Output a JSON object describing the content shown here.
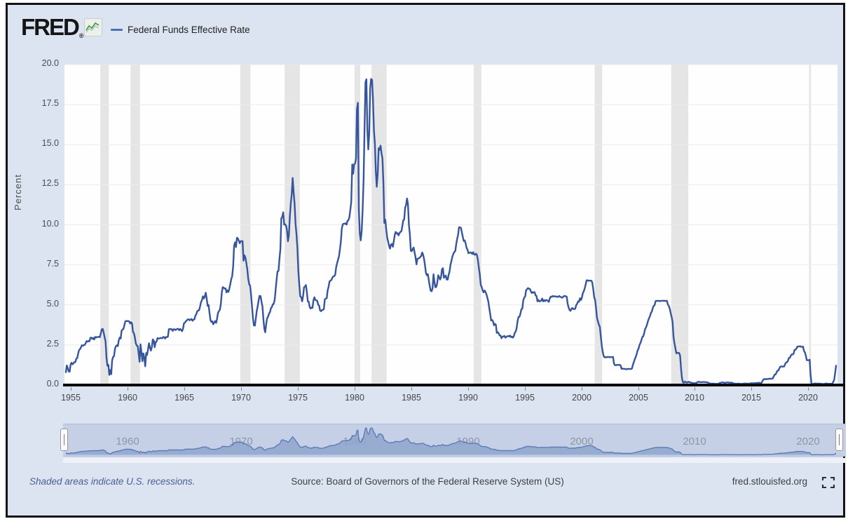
{
  "header": {
    "logo_text": "FRED",
    "logo_registered": "®",
    "legend": {
      "marker_color": "#4a72b0",
      "label": "Federal Funds Effective Rate"
    }
  },
  "chart_data": {
    "type": "line",
    "title": "Federal Funds Effective Rate",
    "ylabel": "Percent",
    "xlim": [
      1954.42,
      2022.58
    ],
    "ylim": [
      0,
      20
    ],
    "y_ticks": [
      0.0,
      2.5,
      5.0,
      7.5,
      10.0,
      12.5,
      15.0,
      17.5,
      20.0
    ],
    "x_ticks": [
      1955,
      1960,
      1965,
      1970,
      1975,
      1980,
      1985,
      1990,
      1995,
      2000,
      2005,
      2010,
      2015,
      2020
    ],
    "grid": "horizontal",
    "legend_position": "top-left",
    "line_color": "#36559c",
    "grid_color": "#ececec",
    "recession_color": "#e5e5e5",
    "recessions": [
      [
        1957.58,
        1958.33
      ],
      [
        1960.25,
        1961.08
      ],
      [
        1969.92,
        1970.83
      ],
      [
        1973.83,
        1975.17
      ],
      [
        1980.0,
        1980.5
      ],
      [
        1981.5,
        1982.83
      ],
      [
        1990.5,
        1991.17
      ],
      [
        2001.17,
        2001.83
      ],
      [
        2007.92,
        2009.42
      ],
      [
        2020.08,
        2020.25
      ]
    ],
    "series": [
      {
        "name": "Federal Funds Effective Rate",
        "units": "Percent",
        "frequency": "monthly",
        "start_year": 1954,
        "start_month": 7,
        "values": [
          0.8,
          1.22,
          1.07,
          0.85,
          0.83,
          1.28,
          1.39,
          1.29,
          1.35,
          1.43,
          1.43,
          1.64,
          1.68,
          1.96,
          2.18,
          2.24,
          2.35,
          2.48,
          2.45,
          2.5,
          2.5,
          2.62,
          2.75,
          2.71,
          2.75,
          2.73,
          2.95,
          2.96,
          2.88,
          2.94,
          2.84,
          3.0,
          2.96,
          3.0,
          3.0,
          3.0,
          2.99,
          3.24,
          3.47,
          3.5,
          3.28,
          2.98,
          2.72,
          1.67,
          1.2,
          1.26,
          0.63,
          0.93,
          0.68,
          1.53,
          1.76,
          1.8,
          2.27,
          2.42,
          2.48,
          2.43,
          2.8,
          2.96,
          2.9,
          3.39,
          3.47,
          3.5,
          3.76,
          3.98,
          4.0,
          3.99,
          3.99,
          3.97,
          3.84,
          3.92,
          3.85,
          3.32,
          3.23,
          2.98,
          2.6,
          2.47,
          2.44,
          1.98,
          1.45,
          2.54,
          2.02,
          1.49,
          1.98,
          1.73,
          1.17,
          2.0,
          1.88,
          2.26,
          2.61,
          2.33,
          2.15,
          2.37,
          2.85,
          2.78,
          2.36,
          2.68,
          2.71,
          2.93,
          2.9,
          2.9,
          2.94,
          2.93,
          2.92,
          3.0,
          2.98,
          2.9,
          3.0,
          2.99,
          3.02,
          3.49,
          3.48,
          3.5,
          3.48,
          3.38,
          3.48,
          3.48,
          3.43,
          3.47,
          3.5,
          3.5,
          3.42,
          3.5,
          3.45,
          3.36,
          3.52,
          3.85,
          3.9,
          3.98,
          4.04,
          4.09,
          4.1,
          4.04,
          4.09,
          4.12,
          4.01,
          4.08,
          4.1,
          4.32,
          4.42,
          4.6,
          4.65,
          4.67,
          4.9,
          5.17,
          5.3,
          5.53,
          5.4,
          5.53,
          5.76,
          5.4,
          4.94,
          5.0,
          4.53,
          4.05,
          3.94,
          3.98,
          3.79,
          3.9,
          3.99,
          3.88,
          4.13,
          4.51,
          4.61,
          4.71,
          5.05,
          5.76,
          6.11,
          6.07,
          6.02,
          6.03,
          5.78,
          5.91,
          5.81,
          6.02,
          6.3,
          6.61,
          6.79,
          7.41,
          8.67,
          8.9,
          8.61,
          9.19,
          9.15,
          9.0,
          8.85,
          8.97,
          8.98,
          8.98,
          7.76,
          8.1,
          7.95,
          7.61,
          7.21,
          6.62,
          6.29,
          6.2,
          5.6,
          4.9,
          4.14,
          3.72,
          3.71,
          4.15,
          4.63,
          4.91,
          5.31,
          5.57,
          5.55,
          5.2,
          4.91,
          4.14,
          3.5,
          3.29,
          3.83,
          4.17,
          4.27,
          4.46,
          4.55,
          4.8,
          4.87,
          5.04,
          5.06,
          5.33,
          5.94,
          6.58,
          7.09,
          7.12,
          7.84,
          8.49,
          10.4,
          10.5,
          10.78,
          10.01,
          10.03,
          9.95,
          9.65,
          8.97,
          9.35,
          10.51,
          11.31,
          11.93,
          12.92,
          12.01,
          11.34,
          10.06,
          9.45,
          8.53,
          7.13,
          6.24,
          5.54,
          5.49,
          5.22,
          5.55,
          6.1,
          6.14,
          6.24,
          5.82,
          5.22,
          5.2,
          4.87,
          4.77,
          4.84,
          4.82,
          5.29,
          5.48,
          5.31,
          5.29,
          5.25,
          5.02,
          4.95,
          4.65,
          4.61,
          4.68,
          4.69,
          4.73,
          5.35,
          5.39,
          5.42,
          5.9,
          6.14,
          6.47,
          6.51,
          6.56,
          6.7,
          6.78,
          6.79,
          6.89,
          7.36,
          7.6,
          7.81,
          8.04,
          8.45,
          8.96,
          9.76,
          10.03,
          10.07,
          10.06,
          10.09,
          10.01,
          10.24,
          10.29,
          10.47,
          10.94,
          11.43,
          13.77,
          13.18,
          13.78,
          13.82,
          14.13,
          17.19,
          17.61,
          10.98,
          9.47,
          9.03,
          9.61,
          10.87,
          12.81,
          15.85,
          18.9,
          19.08,
          15.93,
          14.7,
          15.72,
          18.52,
          19.1,
          19.04,
          17.82,
          15.87,
          15.08,
          13.31,
          12.37,
          13.22,
          14.78,
          14.68,
          14.94,
          14.45,
          14.15,
          12.59,
          10.12,
          10.31,
          9.71,
          9.2,
          8.95,
          8.68,
          8.51,
          8.77,
          8.8,
          8.63,
          8.98,
          9.37,
          9.56,
          9.45,
          9.48,
          9.34,
          9.47,
          9.56,
          9.59,
          9.91,
          10.29,
          10.32,
          11.06,
          11.23,
          11.64,
          11.3,
          9.99,
          9.43,
          8.38,
          8.35,
          8.5,
          8.58,
          8.27,
          7.97,
          7.53,
          7.88,
          7.9,
          7.92,
          7.99,
          8.05,
          8.27,
          8.14,
          7.86,
          7.48,
          6.99,
          6.85,
          6.92,
          6.56,
          6.17,
          5.89,
          5.85,
          6.04,
          6.91,
          6.43,
          6.1,
          6.13,
          6.37,
          6.85,
          6.73,
          6.58,
          6.73,
          7.22,
          7.29,
          6.69,
          6.77,
          6.83,
          6.58,
          6.58,
          6.87,
          7.09,
          7.51,
          7.75,
          8.01,
          8.19,
          8.3,
          8.35,
          8.76,
          9.12,
          9.36,
          9.85,
          9.84,
          9.81,
          9.53,
          9.24,
          8.99,
          9.02,
          8.84,
          8.55,
          8.45,
          8.23,
          8.24,
          8.28,
          8.26,
          8.18,
          8.29,
          8.15,
          8.13,
          8.2,
          8.11,
          7.81,
          7.31,
          6.91,
          6.25,
          6.12,
          5.91,
          5.78,
          5.9,
          5.82,
          5.66,
          5.45,
          5.21,
          4.81,
          4.43,
          4.03,
          4.06,
          3.98,
          3.73,
          3.82,
          3.76,
          3.25,
          3.3,
          3.22,
          3.1,
          3.09,
          2.92,
          3.02,
          3.03,
          3.07,
          2.96,
          3.0,
          3.04,
          3.06,
          3.03,
          3.09,
          2.99,
          3.02,
          2.96,
          3.05,
          3.25,
          3.34,
          3.56,
          4.01,
          4.25,
          4.26,
          4.47,
          4.73,
          4.76,
          5.29,
          5.45,
          5.53,
          5.92,
          5.98,
          6.05,
          6.01,
          6.0,
          5.85,
          5.74,
          5.8,
          5.76,
          5.8,
          5.6,
          5.56,
          5.22,
          5.31,
          5.22,
          5.24,
          5.27,
          5.4,
          5.22,
          5.3,
          5.24,
          5.31,
          5.29,
          5.25,
          5.19,
          5.39,
          5.51,
          5.5,
          5.56,
          5.52,
          5.54,
          5.54,
          5.5,
          5.52,
          5.5,
          5.56,
          5.51,
          5.49,
          5.45,
          5.49,
          5.56,
          5.54,
          5.55,
          5.51,
          5.07,
          4.83,
          4.68,
          4.63,
          4.76,
          4.81,
          4.74,
          4.74,
          4.76,
          4.99,
          5.07,
          5.22,
          5.2,
          5.42,
          5.3,
          5.45,
          5.73,
          5.85,
          6.02,
          6.27,
          6.53,
          6.54,
          6.5,
          6.52,
          6.51,
          6.51,
          6.4,
          5.98,
          5.49,
          5.31,
          4.8,
          4.21,
          3.97,
          3.77,
          3.65,
          3.07,
          2.49,
          2.09,
          1.82,
          1.73,
          1.74,
          1.73,
          1.75,
          1.75,
          1.75,
          1.73,
          1.74,
          1.75,
          1.75,
          1.34,
          1.24,
          1.24,
          1.26,
          1.25,
          1.26,
          1.26,
          1.22,
          1.01,
          1.03,
          1.01,
          1.01,
          1.0,
          0.98,
          1.0,
          1.01,
          1.0,
          1.0,
          1.0,
          1.03,
          1.26,
          1.43,
          1.61,
          1.76,
          1.93,
          2.16,
          2.28,
          2.5,
          2.63,
          2.79,
          3.0,
          3.04,
          3.26,
          3.5,
          3.62,
          3.78,
          4.0,
          4.16,
          4.29,
          4.49,
          4.59,
          4.79,
          4.94,
          4.99,
          5.24,
          5.25,
          5.25,
          5.25,
          5.25,
          5.24,
          5.25,
          5.26,
          5.26,
          5.25,
          5.25,
          5.25,
          5.26,
          5.02,
          4.94,
          4.76,
          4.49,
          4.24,
          3.94,
          2.98,
          2.61,
          2.28,
          1.98,
          2.0,
          2.01,
          2.0,
          1.81,
          0.97,
          0.39,
          0.16,
          0.15,
          0.22,
          0.18,
          0.15,
          0.18,
          0.21,
          0.16,
          0.16,
          0.15,
          0.12,
          0.12,
          0.12,
          0.11,
          0.13,
          0.16,
          0.2,
          0.2,
          0.18,
          0.18,
          0.19,
          0.19,
          0.19,
          0.19,
          0.18,
          0.17,
          0.16,
          0.14,
          0.1,
          0.09,
          0.09,
          0.07,
          0.1,
          0.08,
          0.07,
          0.08,
          0.07,
          0.08,
          0.1,
          0.13,
          0.14,
          0.16,
          0.16,
          0.16,
          0.13,
          0.14,
          0.16,
          0.16,
          0.16,
          0.14,
          0.15,
          0.14,
          0.15,
          0.11,
          0.09,
          0.09,
          0.08,
          0.08,
          0.09,
          0.08,
          0.09,
          0.07,
          0.07,
          0.08,
          0.09,
          0.09,
          0.1,
          0.09,
          0.09,
          0.09,
          0.09,
          0.09,
          0.12,
          0.11,
          0.11,
          0.11,
          0.12,
          0.12,
          0.13,
          0.13,
          0.14,
          0.14,
          0.12,
          0.12,
          0.24,
          0.34,
          0.38,
          0.36,
          0.37,
          0.37,
          0.38,
          0.39,
          0.4,
          0.4,
          0.4,
          0.41,
          0.54,
          0.65,
          0.66,
          0.79,
          0.9,
          0.91,
          1.04,
          1.15,
          1.16,
          1.15,
          1.15,
          1.16,
          1.3,
          1.41,
          1.42,
          1.51,
          1.69,
          1.7,
          1.82,
          1.91,
          1.91,
          1.95,
          2.19,
          2.2,
          2.27,
          2.4,
          2.4,
          2.41,
          2.42,
          2.39,
          2.38,
          2.4,
          2.13,
          2.04,
          1.83,
          1.55,
          1.55,
          1.55,
          1.58,
          0.65,
          0.05,
          0.05,
          0.08,
          0.09,
          0.1,
          0.09,
          0.09,
          0.09,
          0.09,
          0.09,
          0.08,
          0.07,
          0.07,
          0.06,
          0.08,
          0.1,
          0.09,
          0.08,
          0.08,
          0.08,
          0.08,
          0.08,
          0.08,
          0.2,
          0.33,
          0.77,
          1.21
        ]
      }
    ]
  },
  "minimap": {
    "x_labels": [
      1960,
      1970,
      1980,
      1990,
      2000,
      2010,
      2020
    ],
    "band_color": "#c5d0e6",
    "area_fill_color": "#8fa5cd",
    "area_line_color": "#5d7db5"
  },
  "footer": {
    "recession_note": "Shaded areas indicate U.S. recessions.",
    "source": "Source: Board of Governors of the Federal Reserve System (US)",
    "site": "fred.stlouisfed.org"
  }
}
